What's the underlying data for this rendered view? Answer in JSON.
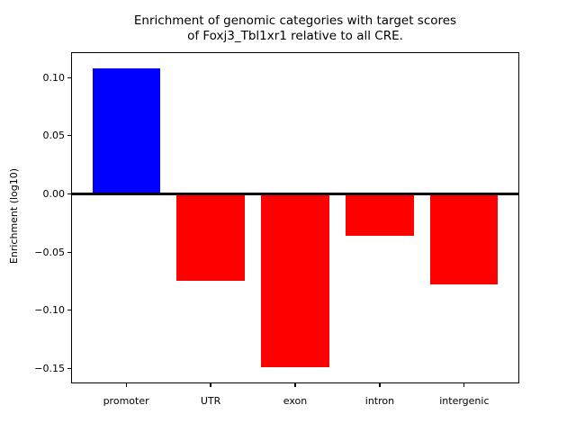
{
  "figure": {
    "title_line1": "Enrichment of genomic categories with target scores",
    "title_line2": "of Foxj3_Tbl1xr1 relative to all CRE.",
    "ylabel": "Enrichment (log10)"
  },
  "chart_data": {
    "type": "bar",
    "title": "Enrichment of genomic categories with target scores\nof Foxj3_Tbl1xr1 relative to all CRE.",
    "xlabel": "",
    "ylabel": "Enrichment (log10)",
    "categories": [
      "promoter",
      "UTR",
      "exon",
      "intron",
      "intergenic"
    ],
    "values": [
      0.108,
      -0.075,
      -0.149,
      -0.036,
      -0.078
    ],
    "bar_colors": [
      "#0000ff",
      "#ff0000",
      "#ff0000",
      "#ff0000",
      "#ff0000"
    ],
    "bar_width": 0.8,
    "yticks": [
      {
        "v": 0.1,
        "label": "0.10"
      },
      {
        "v": 0.05,
        "label": "0.05"
      },
      {
        "v": 0.0,
        "label": "0.00"
      },
      {
        "v": -0.05,
        "label": "−0.05"
      },
      {
        "v": -0.1,
        "label": "−0.10"
      },
      {
        "v": -0.15,
        "label": "−0.15"
      }
    ],
    "ylim": [
      -0.162,
      0.121
    ],
    "xlim": [
      -0.64,
      4.64
    ],
    "zero_line": true,
    "zero_line_color": "#000000",
    "grid": false,
    "legend": null,
    "frame_color": "#000000",
    "background_color": "#ffffff"
  }
}
